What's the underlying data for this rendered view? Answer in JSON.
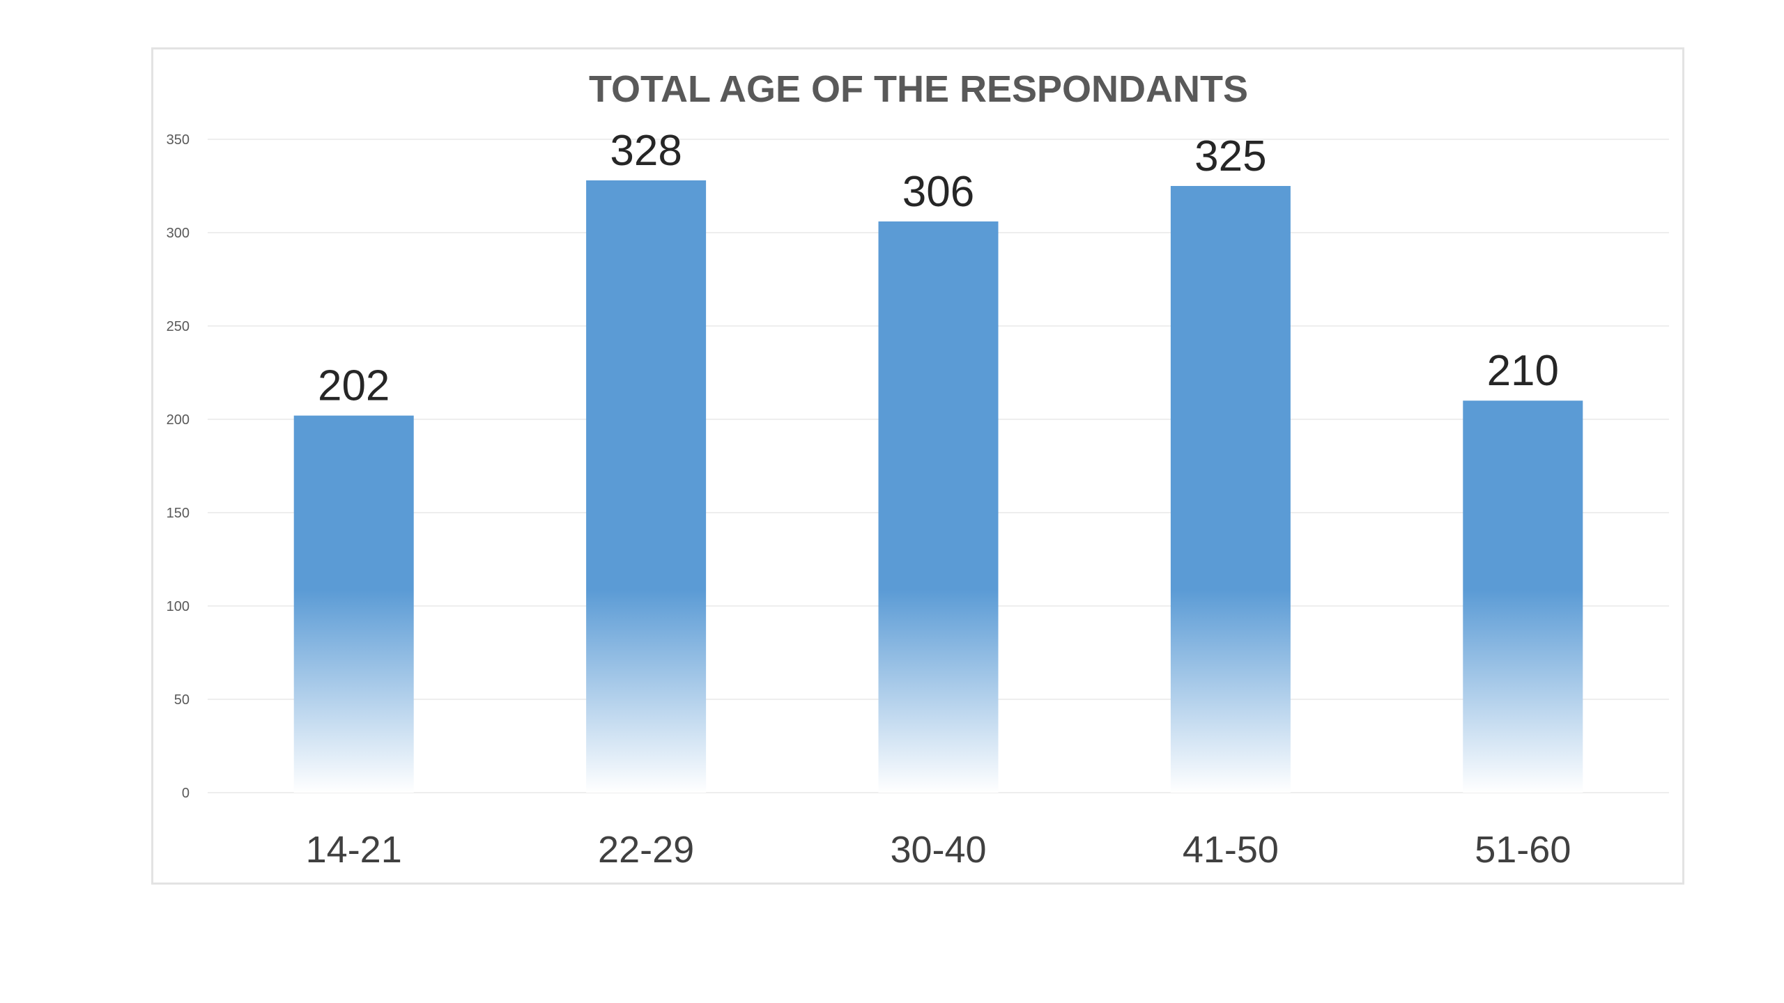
{
  "chart_data": {
    "type": "bar",
    "title": "TOTAL AGE OF THE RESPONDANTS",
    "xlabel": "",
    "ylabel": "",
    "categories": [
      "14-21",
      "22-29",
      "30-40",
      "41-50",
      "51-60"
    ],
    "values": [
      202,
      328,
      306,
      325,
      210
    ],
    "data_labels": [
      "202",
      "328",
      "306",
      "325",
      "210"
    ],
    "ylim": [
      0,
      350
    ],
    "yticks": [
      0,
      50,
      100,
      150,
      200,
      250,
      300,
      350
    ],
    "ytick_labels": [
      "0",
      "50",
      "100",
      "150",
      "200",
      "250",
      "300",
      "350"
    ],
    "grid": true,
    "legend": "none",
    "colors": {
      "bar": "#5b9bd5",
      "bar_fade": "#ffffff",
      "grid": "#eeeeee",
      "title": "#595959",
      "tick_label": "#595959",
      "category_label": "#404040",
      "data_label": "#262626",
      "frame": "#e3e3e3"
    }
  }
}
